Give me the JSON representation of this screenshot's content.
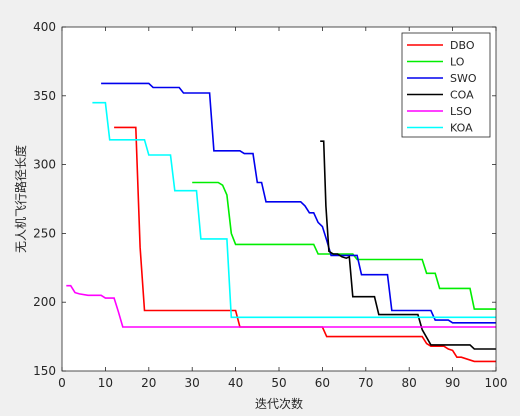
{
  "chart_data": {
    "type": "line",
    "xlabel": "迭代次数",
    "ylabel": "无人机飞行路径长度",
    "xlim": [
      0,
      100
    ],
    "ylim": [
      150,
      400
    ],
    "xticks": [
      0,
      10,
      20,
      30,
      40,
      50,
      60,
      70,
      80,
      90,
      100
    ],
    "yticks": [
      150,
      200,
      250,
      300,
      350,
      400
    ],
    "grid": false,
    "legend_position": "top-right",
    "series": [
      {
        "name": "DBO",
        "color": "#ff0000",
        "x": [
          12,
          17,
          18,
          19,
          40,
          41,
          60,
          61,
          83,
          84,
          85,
          88,
          89,
          90,
          91,
          92,
          95,
          100
        ],
        "y": [
          327,
          327,
          240,
          194,
          194,
          182,
          182,
          175,
          175,
          170,
          168,
          168,
          166,
          165,
          160,
          160,
          157,
          157
        ]
      },
      {
        "name": "LO",
        "color": "#00ee00",
        "x": [
          30,
          36,
          37,
          38,
          39,
          40,
          58,
          59,
          67,
          68,
          83,
          84,
          86,
          87,
          94,
          95,
          100
        ],
        "y": [
          287,
          287,
          285,
          278,
          250,
          242,
          242,
          235,
          235,
          231,
          231,
          221,
          221,
          210,
          210,
          195,
          195
        ]
      },
      {
        "name": "SWO",
        "color": "#0000ee",
        "x": [
          9,
          20,
          21,
          27,
          28,
          34,
          35,
          41,
          42,
          44,
          45,
          46,
          47,
          55,
          56,
          57,
          58,
          59,
          60,
          61,
          62,
          68,
          69,
          75,
          76,
          85,
          86,
          89,
          90,
          100
        ],
        "y": [
          359,
          359,
          356,
          356,
          352,
          352,
          310,
          310,
          308,
          308,
          287,
          287,
          273,
          273,
          270,
          265,
          265,
          258,
          255,
          245,
          234,
          234,
          220,
          220,
          194,
          194,
          187,
          187,
          185,
          185
        ]
      },
      {
        "name": "COA",
        "color": "#000000",
        "x": [
          59.5,
          60.3,
          60.8,
          61.5,
          62.5,
          63.5,
          64.5,
          65.5,
          66.2,
          67,
          72,
          73,
          82,
          83,
          85,
          94,
          95,
          100
        ],
        "y": [
          317,
          317,
          270,
          237,
          235,
          235,
          233,
          232,
          233,
          204,
          204,
          191,
          191,
          180,
          169,
          169,
          166,
          166
        ]
      },
      {
        "name": "LSO",
        "color": "#ff00ff",
        "x": [
          1,
          2,
          3,
          4,
          6,
          9,
          10,
          12,
          13,
          14,
          100
        ],
        "y": [
          212,
          212,
          207,
          206,
          205,
          205,
          203,
          203,
          193,
          182,
          182
        ]
      },
      {
        "name": "KOA",
        "color": "#00ffff",
        "x": [
          7,
          10,
          11,
          19,
          20,
          25,
          26,
          31,
          32,
          38,
          39,
          100
        ],
        "y": [
          345,
          345,
          318,
          318,
          307,
          307,
          281,
          281,
          246,
          246,
          189,
          189
        ]
      }
    ]
  }
}
